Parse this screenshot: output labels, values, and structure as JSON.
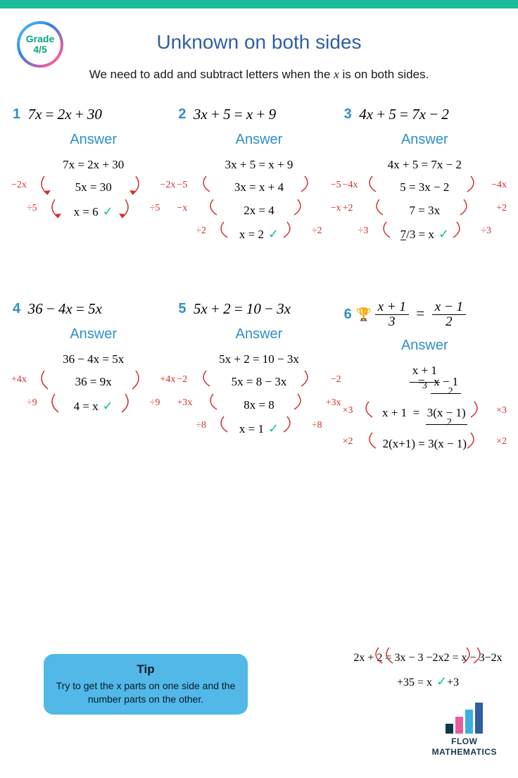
{
  "colors": {
    "accent_bar": "#1abc9c",
    "title": "#2e5fa3",
    "problem_num": "#2e8fc9",
    "answer_label": "#2e8fc9",
    "operation_red": "#d13030",
    "check_green": "#1abc9c",
    "tip_bg": "#52b8e8",
    "grade_text": "#00a77f",
    "logo_bars": [
      "#0a3a4a",
      "#e85d9e",
      "#3bb0e0",
      "#2e5fa3"
    ],
    "logo_bar_heights": [
      14,
      24,
      34,
      44
    ]
  },
  "grade": {
    "line1": "Grade",
    "line2": "4/5"
  },
  "title": "Unknown on both sides",
  "subtitle_pre": "We need to add and subtract letters when the ",
  "subtitle_var": "x",
  "subtitle_post": " is on both sides.",
  "answer_label": "Answer",
  "problems": [
    {
      "num": "1",
      "equation": "7x = 2x + 30",
      "steps": [
        "7x  =  2x  +  30",
        "5x  =  30",
        "x = 6"
      ],
      "ops": [
        "−2x",
        "÷5"
      ]
    },
    {
      "num": "2",
      "equation": "3x + 5 = x + 9",
      "steps": [
        "3x  + 5  =  x  +  9",
        "3x  =  x  +  4",
        "2x  =  4",
        "x = 2"
      ],
      "ops": [
        "−5",
        "−x",
        "÷2"
      ]
    },
    {
      "num": "3",
      "equation": "4x + 5 = 7x − 2",
      "steps": [
        "4x + 5  =  7x  −  2",
        "5  =  3x  −  2",
        "7  =  3x",
        "⁷⁄₃ = x"
      ],
      "ops": [
        "−4x",
        "+2",
        "÷3"
      ]
    },
    {
      "num": "4",
      "equation": "36 − 4x = 5x",
      "steps": [
        "36  −  4x  =  5x",
        "36  =  9x",
        "4 = x"
      ],
      "ops": [
        "+4x",
        "÷9"
      ]
    },
    {
      "num": "5",
      "equation": "5x + 2 = 10 − 3x",
      "steps": [
        "5x + 2  = 10 − 3x",
        "5x  =  8 − 3x",
        "8x  =  8",
        "x = 1"
      ],
      "ops": [
        "−2",
        "+3x",
        "÷8"
      ]
    },
    {
      "num": "6",
      "equation_frac": {
        "l_num": "x + 1",
        "l_den": "3",
        "r_num": "x − 1",
        "r_den": "2"
      },
      "trophy": true,
      "steps": [
        "(x+1)/3  =  (x−1)/2",
        "x + 1  =  3(x−1)/2",
        "2(x+1) = 3(x − 1)"
      ],
      "ops": [
        "×3",
        "×2"
      ]
    }
  ],
  "extra_steps": {
    "lines": [
      "2x + 2  =  3x  −  3",
      "2  =  x  − 3",
      "5 = x"
    ],
    "ops": [
      "−2x",
      "+3"
    ]
  },
  "tip": {
    "title": "Tip",
    "text": "Try to get the x parts on one side and the number parts on the other."
  },
  "logo": {
    "line1": "FLOW",
    "line2": "MATHEMATICS"
  }
}
